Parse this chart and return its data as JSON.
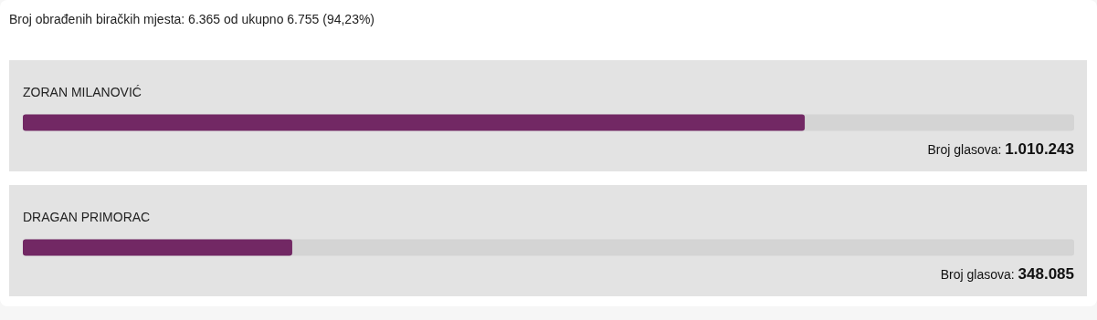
{
  "chart_data": {
    "type": "bar",
    "orientation": "horizontal",
    "title": "Broj obrađenih biračkih mjesta: 6.365 od ukupno 6.755 (94,23%)",
    "categories": [
      "ZORAN MILANOVIĆ",
      "DRAGAN PRIMORAC"
    ],
    "values": [
      1010243,
      348085
    ],
    "value_labels": [
      "Broj glasova: 1.010.243",
      "Broj glasova: 348.085"
    ],
    "color": "#722864",
    "xlim": [
      0,
      1358328
    ],
    "tick_labels": false
  }
}
